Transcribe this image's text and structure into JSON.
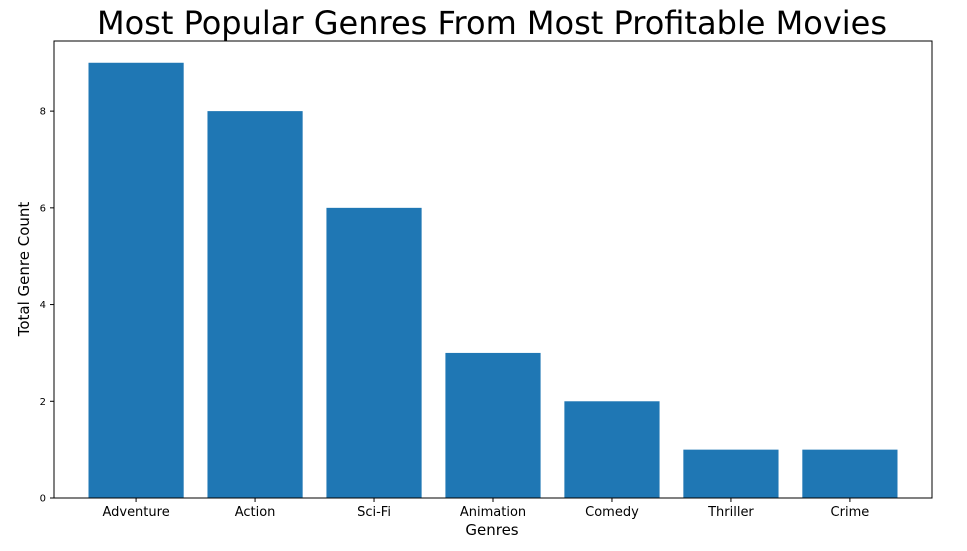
{
  "chart_data": {
    "type": "bar",
    "title": "Most Popular Genres From Most Profitable Movies",
    "xlabel": "Genres",
    "ylabel": "Total Genre Count",
    "categories": [
      "Adventure",
      "Action",
      "Sci-Fi",
      "Animation",
      "Comedy",
      "Thriller",
      "Crime"
    ],
    "values": [
      9,
      8,
      6,
      3,
      2,
      1,
      1
    ],
    "ylim": [
      0,
      9.45
    ],
    "yticks": [
      0,
      2,
      4,
      6,
      8
    ],
    "grid": false,
    "bar_color": "#1f77b4"
  }
}
